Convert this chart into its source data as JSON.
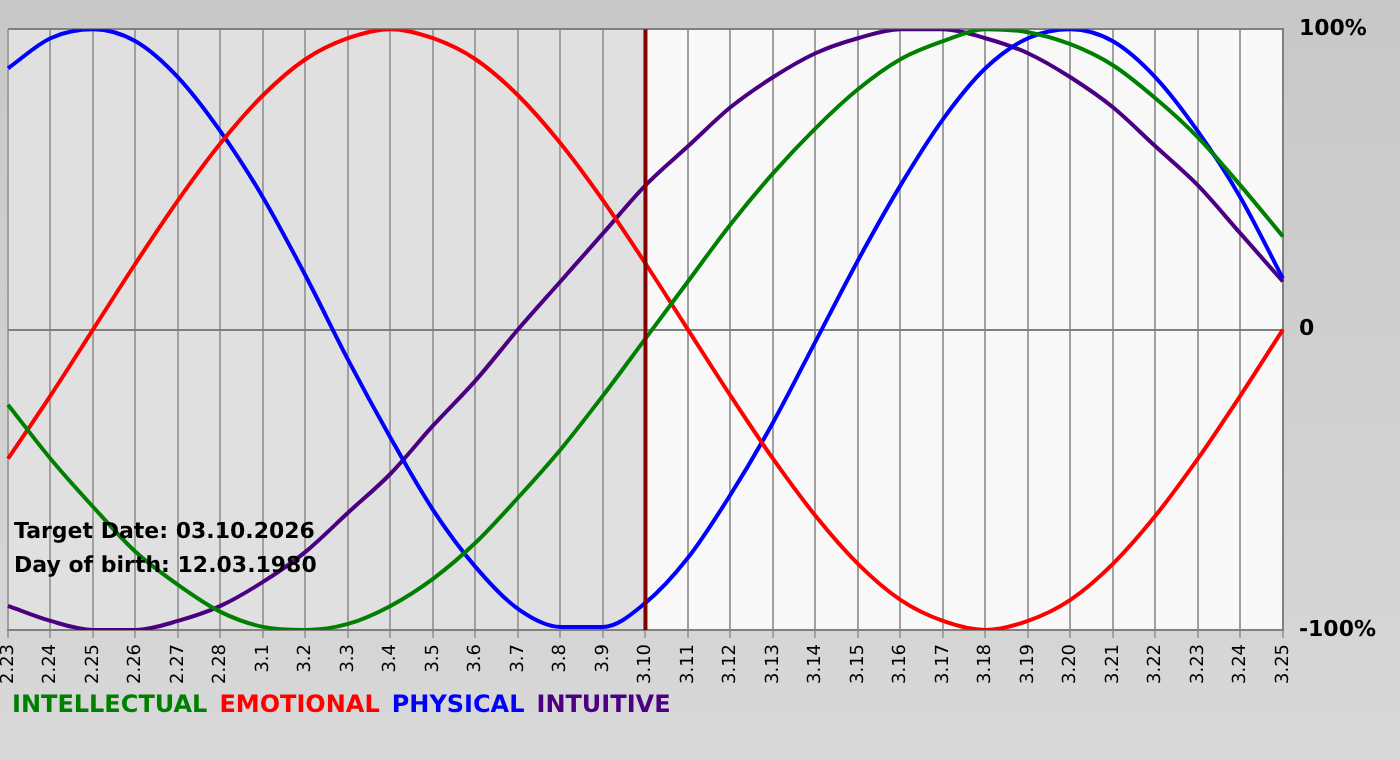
{
  "chart_data": {
    "type": "line",
    "categories": [
      "2.23",
      "2.24",
      "2.25",
      "2.26",
      "2.27",
      "2.28",
      "3.1",
      "3.2",
      "3.3",
      "3.4",
      "3.5",
      "3.6",
      "3.7",
      "3.8",
      "3.9",
      "3.10",
      "3.11",
      "3.12",
      "3.13",
      "3.14",
      "3.15",
      "3.16",
      "3.17",
      "3.18",
      "3.19",
      "3.20",
      "3.21",
      "3.22",
      "3.23",
      "3.24",
      "3.25"
    ],
    "series": [
      {
        "name": "INTELLECTUAL",
        "color": "#008000",
        "values": [
          -25,
          -43,
          -59,
          -74,
          -85,
          -94,
          -99,
          -100,
          -98,
          -92,
          -83,
          -71,
          -56,
          -40,
          -22,
          -3,
          16,
          35,
          52,
          67,
          80,
          90,
          96,
          100,
          99,
          95,
          88,
          77,
          64,
          48,
          31
        ]
      },
      {
        "name": "EMOTIONAL",
        "color": "#ff0000",
        "values": [
          -43,
          -22,
          0,
          22,
          43,
          62,
          78,
          90,
          97,
          100,
          97,
          90,
          78,
          62,
          43,
          22,
          0,
          -22,
          -43,
          -62,
          -78,
          -90,
          -97,
          -100,
          -97,
          -90,
          -78,
          -62,
          -43,
          -22,
          0
        ]
      },
      {
        "name": "PHYSICAL",
        "color": "#0000ff",
        "values": [
          87,
          97,
          100,
          96,
          84,
          66,
          44,
          18,
          -10,
          -36,
          -60,
          -79,
          -93,
          -99,
          -99,
          -91,
          -76,
          -55,
          -31,
          -4,
          23,
          48,
          70,
          87,
          97,
          100,
          96,
          84,
          66,
          44,
          17
        ]
      },
      {
        "name": "INTUITIVE",
        "color": "#4b0082",
        "values": [
          -92,
          -97,
          -100,
          -100,
          -97,
          -92,
          -84,
          -74,
          -61,
          -48,
          -32,
          -17,
          0,
          16,
          32,
          48,
          61,
          74,
          84,
          92,
          97,
          100,
          100,
          97,
          92,
          84,
          74,
          61,
          48,
          32,
          16
        ]
      }
    ],
    "ylim": [
      -100,
      100
    ],
    "yticks": [
      {
        "value": -100,
        "label": "-100%"
      },
      0,
      {
        "value": 100,
        "label": "100%"
      }
    ],
    "grid": true,
    "legend": "bottom left",
    "marker": "none",
    "line_style": "solid",
    "ref_lines": [
      {
        "axis": "x",
        "value": "3.10",
        "color": "#800000"
      }
    ],
    "bands": [
      {
        "axis": "x",
        "from": "2.23",
        "to": "3.10",
        "color": "#e0e0e0"
      }
    ],
    "annotations": [
      "Target Date: 03.10.2026",
      "Day of birth: 12.03.1980"
    ]
  }
}
